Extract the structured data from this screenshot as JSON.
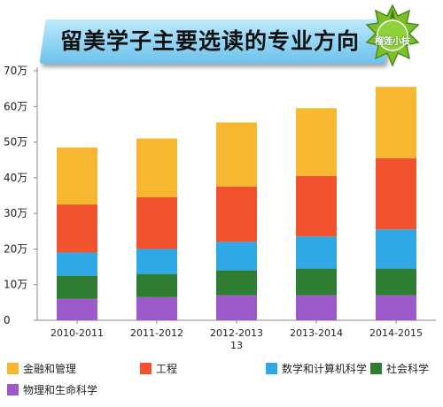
{
  "header": {
    "title": "留美学子主要选读的专业方向",
    "badge_text": "榴莲小枝"
  },
  "chart_data": {
    "type": "bar",
    "stacked": true,
    "title": "留美学子主要选读的专业方向",
    "xlabel": "",
    "ylabel": "",
    "categories": [
      "2010-2011",
      "2011-2012",
      "2012-2013",
      "2013-2014",
      "2014-2015"
    ],
    "category_labels": [
      [
        "2010-2011"
      ],
      [
        "2011-2012"
      ],
      [
        "2012-2013",
        "13"
      ],
      [
        "2013-2014"
      ],
      [
        "2014-2015"
      ]
    ],
    "ylim": [
      0,
      70
    ],
    "yticks": [
      0,
      10,
      20,
      30,
      40,
      50,
      60,
      70
    ],
    "ytick_labels": [
      "0",
      "10万",
      "20万",
      "30万",
      "40万",
      "50万",
      "60万",
      "70万"
    ],
    "grid": false,
    "legend_position": "bottom",
    "series": [
      {
        "name": "物理和生命科学",
        "color": "#9b59c9",
        "values": [
          6.0,
          6.5,
          7.0,
          7.0,
          7.0
        ]
      },
      {
        "name": "社会科学",
        "color": "#2e7d32",
        "values": [
          6.5,
          6.5,
          7.0,
          7.5,
          7.5
        ]
      },
      {
        "name": "数学和计算机科学",
        "color": "#2fa8e5",
        "values": [
          6.5,
          7.0,
          8.0,
          9.0,
          11.0
        ]
      },
      {
        "name": "工程",
        "color": "#f0532d",
        "values": [
          13.5,
          14.5,
          15.5,
          17.0,
          20.0
        ]
      },
      {
        "name": "金融和管理",
        "color": "#f7b731",
        "values": [
          16.0,
          16.5,
          18.0,
          19.0,
          20.0
        ]
      }
    ],
    "legend_order": [
      "金融和管理",
      "工程",
      "数学和计算机科学",
      "社会科学",
      "物理和生命科学"
    ]
  }
}
